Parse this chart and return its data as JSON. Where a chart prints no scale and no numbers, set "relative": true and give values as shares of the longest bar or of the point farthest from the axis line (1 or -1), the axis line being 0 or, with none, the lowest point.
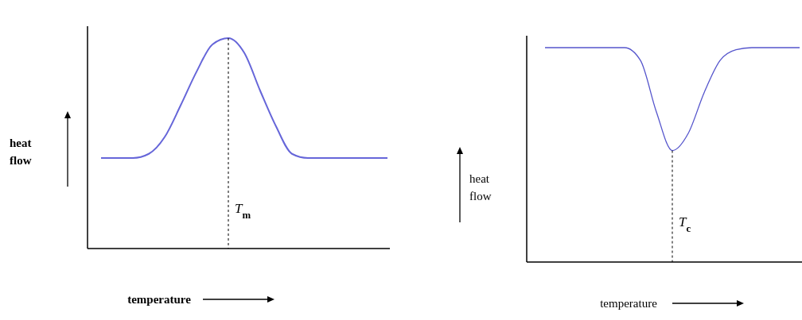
{
  "chart_data": [
    {
      "type": "line",
      "relative": true,
      "xlabel": "temperature",
      "ylabel": "heat flow",
      "categories": [
        null,
        null,
        null,
        null,
        null,
        null,
        null,
        null,
        null,
        null,
        null,
        null,
        null,
        null,
        null,
        null,
        null,
        null,
        null
      ],
      "series": [
        {
          "color": "#6666d9",
          "values": [
            0.43,
            0.43,
            0.43,
            0.45,
            0.53,
            0.68,
            0.84,
            0.97,
            1,
            0.93,
            0.75,
            0.58,
            0.45,
            0.43,
            0.43,
            0.43,
            0.43,
            0.43,
            0.43
          ]
        }
      ],
      "annotations": [
        "T$_{m}$"
      ]
    },
    {
      "type": "line",
      "relative": true,
      "xlabel": "temperature",
      "ylabel": "heat flow",
      "categories": [
        null,
        null,
        null,
        null,
        null,
        null,
        null,
        null,
        null,
        null,
        null,
        null,
        null,
        null,
        null,
        null,
        null
      ],
      "series": [
        {
          "color": "#5555cc",
          "values": [
            1,
            1,
            1,
            1,
            1,
            1,
            0.94,
            0.7,
            0.52,
            0.6,
            0.79,
            0.94,
            0.99,
            1,
            1,
            1,
            1
          ]
        }
      ],
      "annotations": [
        "T$_{c}$"
      ]
    }
  ]
}
